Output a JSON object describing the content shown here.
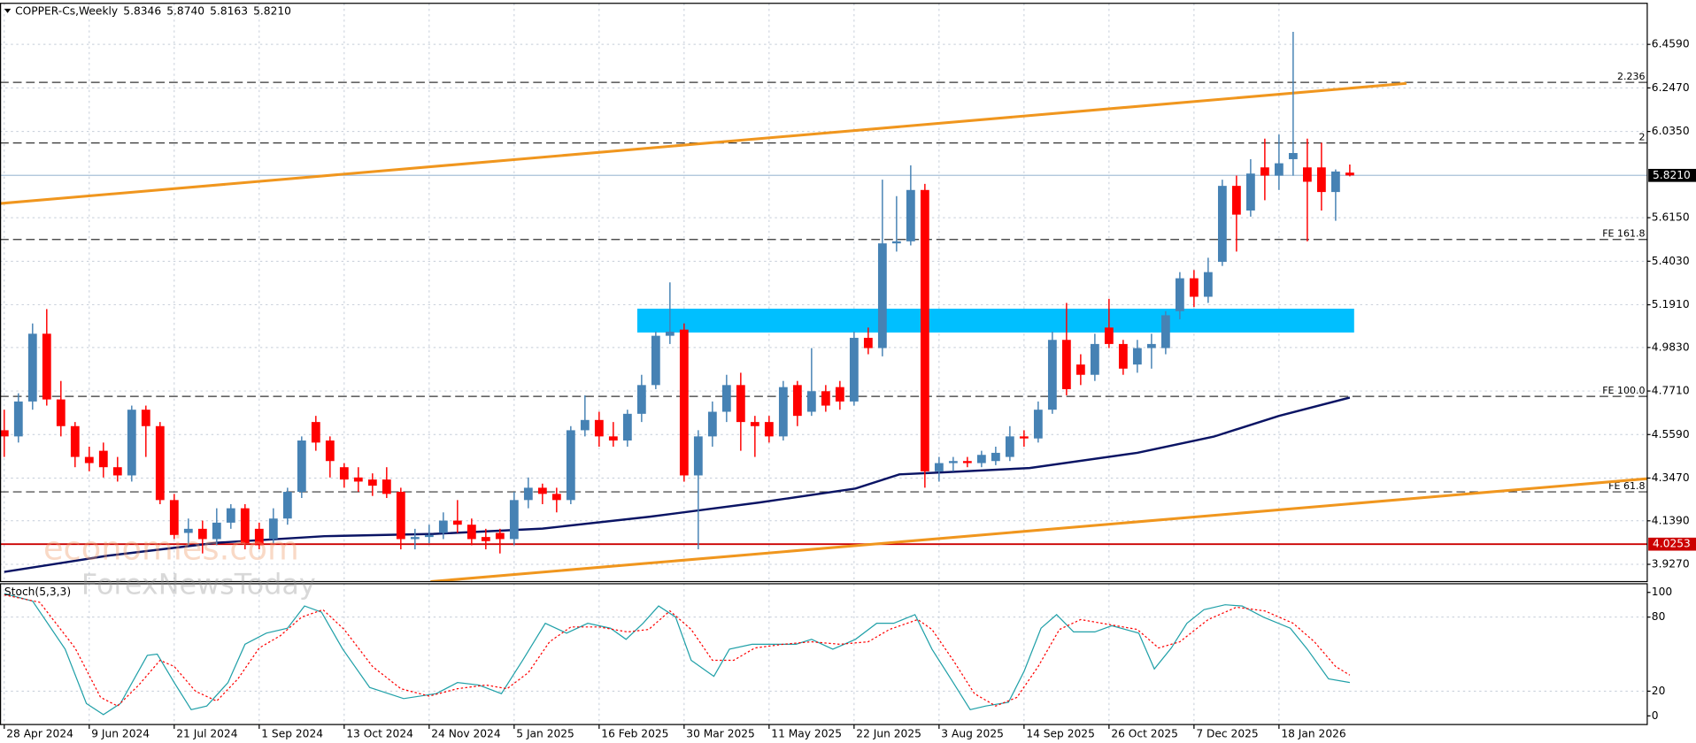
{
  "chart_data": [
    {
      "type": "candlestick",
      "title": "COPPER-Cs,Weekly",
      "header_values": [
        "5.8346",
        "5.8740",
        "5.8163",
        "5.8210"
      ],
      "categories": [
        "28 Apr 2024",
        null,
        null,
        null,
        null,
        null,
        "9 Jun 2024",
        null,
        null,
        null,
        null,
        null,
        "21 Jul 2024",
        null,
        null,
        null,
        null,
        null,
        "1 Sep 2024",
        null,
        null,
        null,
        null,
        null,
        "13 Oct 2024",
        null,
        null,
        null,
        null,
        null,
        "24 Nov 2024",
        null,
        null,
        null,
        null,
        null,
        "5 Jan 2025",
        null,
        null,
        null,
        null,
        null,
        "16 Feb 2025",
        null,
        null,
        null,
        null,
        null,
        "30 Mar 2025",
        null,
        null,
        null,
        null,
        null,
        "11 May 2025",
        null,
        null,
        null,
        null,
        null,
        "22 Jun 2025",
        null,
        null,
        null,
        null,
        null,
        "3 Aug 2025",
        null,
        null,
        null,
        null,
        null,
        "14 Sep 2025",
        null,
        null,
        null,
        null,
        null,
        "26 Oct 2025",
        null,
        null,
        null,
        null,
        null,
        "7 Dec 2025",
        null,
        null,
        null,
        null,
        null,
        "18 Jan 2026",
        null,
        null,
        null,
        null,
        null
      ],
      "open": [
        4.58,
        4.55,
        4.72,
        5.05,
        4.73,
        4.6,
        4.45,
        4.48,
        4.4,
        4.36,
        4.68,
        4.6,
        4.24,
        4.08,
        4.1,
        4.05,
        4.13,
        4.2,
        4.1,
        4.05,
        4.15,
        4.28,
        4.62,
        4.53,
        4.4,
        4.35,
        4.34,
        4.34,
        4.28,
        4.05,
        4.06,
        4.08,
        4.14,
        4.12,
        4.06,
        4.08,
        4.05,
        4.24,
        4.3,
        4.27,
        4.24,
        4.58,
        4.63,
        4.55,
        4.53,
        4.66,
        4.8,
        5.04,
        5.07,
        4.36,
        4.55,
        4.67,
        4.8,
        4.62,
        4.62,
        4.55,
        4.8,
        4.67,
        4.77,
        4.79,
        4.72,
        5.03,
        4.98,
        5.49,
        5.5,
        5.75,
        4.38,
        4.42,
        4.43,
        4.42,
        4.43,
        4.45,
        4.55,
        4.54,
        4.68,
        5.02,
        4.9,
        4.85,
        5.08,
        5.0,
        4.9,
        4.98,
        4.98,
        5.16,
        5.32,
        5.23,
        5.4,
        5.77,
        5.65,
        5.86,
        5.82,
        5.9,
        5.86,
        5.86,
        5.74,
        5.8346
      ],
      "high": [
        4.68,
        4.76,
        5.1,
        5.17,
        4.82,
        4.62,
        4.5,
        4.52,
        4.45,
        4.7,
        4.7,
        4.62,
        4.27,
        4.15,
        4.14,
        4.2,
        4.22,
        4.22,
        4.13,
        4.2,
        4.3,
        4.55,
        4.65,
        4.55,
        4.42,
        4.4,
        4.37,
        4.4,
        4.3,
        4.1,
        4.12,
        4.18,
        4.24,
        4.15,
        4.1,
        4.1,
        4.28,
        4.35,
        4.32,
        4.3,
        4.6,
        4.75,
        4.67,
        4.62,
        4.68,
        4.85,
        5.06,
        5.3,
        5.1,
        4.58,
        4.72,
        4.85,
        4.86,
        4.65,
        4.65,
        4.82,
        4.82,
        4.98,
        4.8,
        4.82,
        5.06,
        5.08,
        5.8,
        5.72,
        5.87,
        5.78,
        4.45,
        4.45,
        4.45,
        4.48,
        4.5,
        4.6,
        4.58,
        4.72,
        5.06,
        5.2,
        4.95,
        5.05,
        5.22,
        5.02,
        5.02,
        5.05,
        5.16,
        5.35,
        5.36,
        5.42,
        5.8,
        5.82,
        5.9,
        6.0,
        6.02,
        6.52,
        6.0,
        5.98,
        5.85,
        5.874
      ],
      "low": [
        4.45,
        4.52,
        4.68,
        4.7,
        4.55,
        4.4,
        4.38,
        4.35,
        4.33,
        4.33,
        4.45,
        4.22,
        4.05,
        4.02,
        3.98,
        4.02,
        4.1,
        4.0,
        4.0,
        4.03,
        4.12,
        4.25,
        4.48,
        4.35,
        4.3,
        4.28,
        4.26,
        4.25,
        4.0,
        4.0,
        4.03,
        4.05,
        4.08,
        4.02,
        4.0,
        3.98,
        4.02,
        4.2,
        4.22,
        4.18,
        4.22,
        4.55,
        4.5,
        4.5,
        4.5,
        4.62,
        4.78,
        5.0,
        4.33,
        4.0,
        4.5,
        4.62,
        4.48,
        4.45,
        4.52,
        4.53,
        4.6,
        4.65,
        4.67,
        4.68,
        4.7,
        4.95,
        4.94,
        5.45,
        5.48,
        4.3,
        4.33,
        4.38,
        4.4,
        4.4,
        4.41,
        4.43,
        4.5,
        4.52,
        4.66,
        4.75,
        4.8,
        4.82,
        4.98,
        4.85,
        4.86,
        4.88,
        4.95,
        5.12,
        5.18,
        5.2,
        5.38,
        5.45,
        5.62,
        5.7,
        5.75,
        5.82,
        5.5,
        5.65,
        5.6,
        5.8163
      ],
      "close": [
        4.55,
        4.72,
        5.05,
        4.73,
        4.6,
        4.45,
        4.42,
        4.4,
        4.36,
        4.68,
        4.6,
        4.24,
        4.07,
        4.1,
        4.05,
        4.13,
        4.2,
        4.03,
        4.02,
        4.15,
        4.28,
        4.53,
        4.52,
        4.43,
        4.34,
        4.33,
        4.31,
        4.27,
        4.05,
        4.06,
        4.07,
        4.14,
        4.12,
        4.05,
        4.04,
        4.05,
        4.24,
        4.3,
        4.27,
        4.24,
        4.58,
        4.63,
        4.55,
        4.53,
        4.66,
        4.8,
        5.04,
        5.06,
        4.36,
        4.55,
        4.67,
        4.8,
        4.62,
        4.6,
        4.55,
        4.79,
        4.65,
        4.77,
        4.7,
        4.72,
        5.03,
        4.98,
        5.49,
        5.5,
        5.75,
        4.38,
        4.42,
        4.43,
        4.42,
        4.46,
        4.47,
        4.55,
        4.54,
        4.68,
        5.02,
        4.78,
        4.85,
        5.0,
        5.0,
        4.88,
        4.98,
        5.0,
        5.14,
        5.32,
        5.23,
        5.35,
        5.77,
        5.63,
        5.83,
        5.82,
        5.88,
        5.93,
        5.79,
        5.74,
        5.84,
        5.821
      ],
      "up_color": "#4682b4",
      "down_color": "#ff0000",
      "xlim": [
        -0.3,
        116.0
      ],
      "ylim": [
        3.843,
        6.659
      ],
      "yticks": [
        {
          "value": 6.459,
          "label": "6.4590"
        },
        {
          "value": 6.247,
          "label": "6.2470"
        },
        {
          "value": 6.035,
          "label": "6.0350"
        },
        {
          "value": 5.615,
          "label": "5.6150"
        },
        {
          "value": 5.403,
          "label": "5.4030"
        },
        {
          "value": 5.191,
          "label": "5.1910"
        },
        {
          "value": 4.983,
          "label": "4.9830"
        },
        {
          "value": 4.771,
          "label": "4.7710"
        },
        {
          "value": 4.559,
          "label": "4.5590"
        },
        {
          "value": 4.347,
          "label": "4.3470"
        },
        {
          "value": 4.139,
          "label": "4.1390"
        },
        {
          "value": 3.927,
          "label": "3.9270"
        }
      ],
      "grid": true,
      "ma": {
        "color": "#0a1464",
        "x": [
          0,
          7.3,
          15,
          22.6,
          30.3,
          38,
          45.6,
          53.3,
          60.1,
          63.2,
          66.3,
          72.4,
          80,
          85.4,
          90,
          95
        ],
        "values": [
          3.89,
          3.969,
          4.032,
          4.064,
          4.075,
          4.101,
          4.159,
          4.228,
          4.296,
          4.365,
          4.375,
          4.396,
          4.47,
          4.549,
          4.65,
          4.739
        ]
      },
      "trendlines": [
        {
          "color": "#f0961e",
          "x": [
            -0.31,
            99.0
          ],
          "y": [
            5.684,
            6.269
          ]
        },
        {
          "color": "#f0961e",
          "x": [
            30.1,
            116.0
          ],
          "y": [
            3.843,
            4.344
          ]
        }
      ],
      "zone": {
        "color": "#00bfff",
        "x": [
          45,
          95
        ],
        "y": [
          5.056,
          5.172
        ]
      },
      "levels": [
        {
          "label": "2.236",
          "value": 6.274
        },
        {
          "label": "2",
          "value": 5.979
        },
        {
          "label": "FE 161.8",
          "value": 5.509
        },
        {
          "label": "FE 100.0",
          "value": 4.745
        },
        {
          "label": "FE 61.8",
          "value": 4.28
        }
      ],
      "support": {
        "value": 4.0253,
        "label": "4.0253",
        "color": "#cc0000"
      },
      "current_price": {
        "value": 5.821,
        "label": "5.8210"
      },
      "watermark": [
        "economies.com",
        "ForexNewsToday"
      ]
    },
    {
      "type": "line",
      "title": "Stoch(5,3,3)",
      "xlim": [
        -0.3,
        116.0
      ],
      "ylim": [
        -7,
        107
      ],
      "yticks": [
        0,
        20,
        80,
        100
      ],
      "levels": [
        20,
        80
      ],
      "series": [
        {
          "color": "#20a0a8",
          "x": [
            0,
            2,
            4.3,
            5.8,
            7,
            8.2,
            10.1,
            10.8,
            12,
            13.2,
            14.3,
            15.8,
            17,
            18.5,
            20,
            21.2,
            22.4,
            23.9,
            25.8,
            28.2,
            30.5,
            32,
            33.5,
            35.1,
            36.6,
            38.2,
            39.7,
            41.2,
            42.8,
            43.9,
            45.1,
            46.2,
            47.4,
            48.5,
            50.1,
            51.2,
            52.8,
            54.3,
            55.9,
            57,
            58.5,
            60.1,
            61.6,
            62.8,
            64.3,
            65.5,
            67,
            68.2,
            69.3,
            70.9,
            72,
            73.2,
            74.3,
            75.5,
            77,
            78.2,
            80.1,
            81.2,
            82.4,
            83.5,
            84.7,
            86.2,
            87.4,
            88.9,
            90.8,
            92,
            93.5,
            95
          ],
          "values": [
            99,
            93,
            54,
            10,
            1,
            10,
            49,
            50,
            27,
            5,
            8,
            27,
            58,
            67,
            71,
            89,
            84,
            54,
            23,
            14,
            18,
            27,
            25,
            18,
            45,
            75,
            67,
            75,
            71,
            62,
            75,
            89,
            80,
            45,
            32,
            54,
            58,
            58,
            58,
            62,
            54,
            62,
            75,
            75,
            82,
            54,
            27,
            5,
            8,
            11,
            36,
            71,
            82,
            68,
            68,
            73,
            67,
            38,
            55,
            75,
            86,
            90,
            89,
            80,
            71,
            54,
            30,
            27
          ]
        },
        {
          "color": "#ff0000",
          "dash": true,
          "x": [
            0,
            2.5,
            5,
            6.8,
            8,
            9.5,
            11,
            12,
            13.5,
            15,
            16.5,
            18,
            19.5,
            21,
            22.5,
            24,
            26,
            28,
            30,
            32,
            34,
            35.5,
            37,
            38.5,
            40,
            42,
            44,
            45.5,
            47,
            48.5,
            50,
            51.5,
            53,
            55,
            57,
            59,
            61,
            62.5,
            64.5,
            65.5,
            67,
            68.5,
            70,
            71.5,
            73,
            74.5,
            76,
            78,
            80,
            81.5,
            83,
            85,
            87,
            89,
            91,
            92.5,
            94,
            95
          ],
          "values": [
            98,
            92,
            55,
            15,
            8,
            25,
            45,
            40,
            20,
            12,
            30,
            55,
            65,
            80,
            86,
            70,
            40,
            22,
            16,
            22,
            25,
            22,
            35,
            60,
            72,
            72,
            68,
            70,
            85,
            70,
            45,
            45,
            55,
            58,
            60,
            58,
            60,
            70,
            78,
            70,
            45,
            18,
            8,
            15,
            40,
            70,
            78,
            74,
            70,
            55,
            60,
            78,
            88,
            85,
            75,
            60,
            40,
            33
          ]
        }
      ]
    }
  ]
}
